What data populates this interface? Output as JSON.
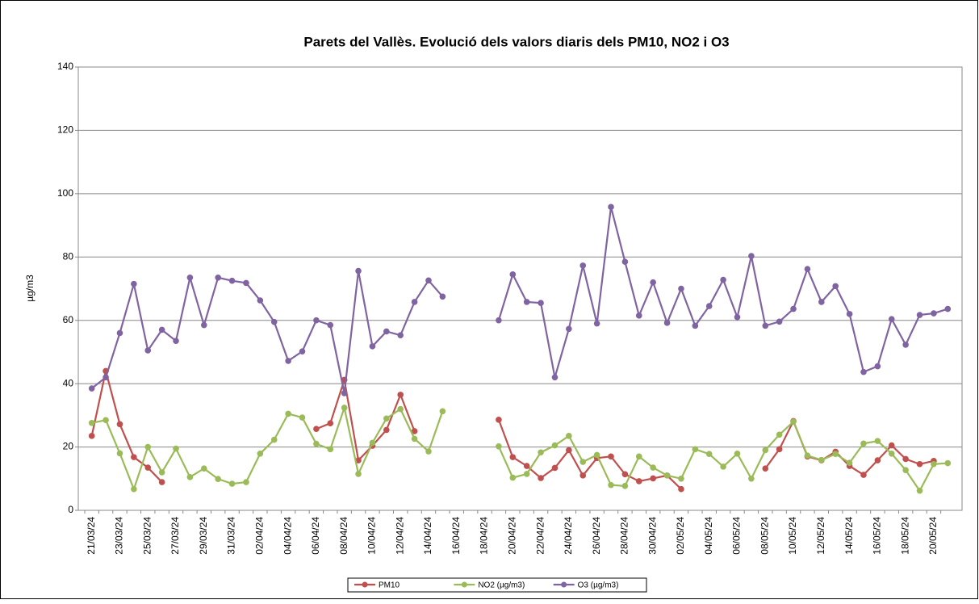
{
  "chart_data": {
    "type": "line",
    "title": "Parets del Vallès. Evolució dels valors diaris dels PM10, NO2 i O3",
    "y_label": "µg/m3",
    "categories": [
      "21/03/24",
      null,
      "23/03/24",
      null,
      "25/03/24",
      null,
      "27/03/24",
      null,
      "29/03/24",
      null,
      "31/03/24",
      null,
      "02/04/24",
      null,
      "04/04/24",
      null,
      "06/04/24",
      null,
      "08/04/24",
      null,
      "10/04/24",
      null,
      "12/04/24",
      null,
      "14/04/24",
      null,
      "16/04/24",
      null,
      "18/04/24",
      null,
      "20/04/24",
      null,
      "22/04/24",
      null,
      "24/04/24",
      null,
      "26/04/24",
      null,
      "28/04/24",
      null,
      "30/04/24",
      null,
      "02/05/24",
      null,
      "04/05/24",
      null,
      "06/05/24",
      null,
      "08/05/24",
      null,
      "10/05/24",
      null,
      "12/05/24",
      null,
      "14/05/24",
      null,
      "16/05/24",
      null,
      "18/05/24",
      null,
      "20/05/24",
      null
    ],
    "series": [
      {
        "name": "PM10",
        "color": "#c0504d",
        "values": [
          23.5,
          44,
          27.2,
          16.8,
          13.5,
          8.9,
          null,
          null,
          null,
          null,
          null,
          null,
          null,
          null,
          null,
          null,
          25.7,
          27.5,
          41.2,
          15.8,
          20.4,
          25.4,
          36.5,
          25,
          null,
          null,
          null,
          null,
          null,
          28.6,
          16.8,
          14,
          10.2,
          13.4,
          19,
          11,
          16.5,
          17,
          11.4,
          9.2,
          10.1,
          11,
          6.7,
          null,
          null,
          null,
          null,
          null,
          13.2,
          19.3,
          28.2,
          17,
          15.8,
          18.5,
          14,
          11.2,
          15.8,
          20.5,
          16.2,
          14.6,
          15.6,
          null
        ]
      },
      {
        "name": "NO2 (µg/m3)",
        "color": "#9bbb59",
        "values": [
          27.6,
          28.5,
          18,
          6.7,
          20,
          12,
          19.5,
          10.5,
          13.2,
          9.9,
          8.4,
          8.9,
          17.9,
          22.3,
          30.5,
          29.3,
          21,
          19.3,
          32.4,
          11.5,
          21.3,
          29,
          32,
          22.6,
          18.6,
          31.3,
          null,
          null,
          null,
          20.2,
          10.3,
          11.5,
          18.3,
          20.5,
          23.5,
          15.3,
          17.5,
          8,
          7.7,
          17,
          13.5,
          11,
          10,
          19.3,
          17.8,
          13.8,
          17.9,
          10,
          19,
          23.9,
          28,
          17.3,
          15.9,
          17.8,
          15,
          21.1,
          21.9,
          17.9,
          12.7,
          6.2,
          14.6,
          14.9
        ]
      },
      {
        "name": "O3 (µg/m3)",
        "color": "#8064a2",
        "values": [
          38.5,
          42,
          56,
          71.5,
          50.5,
          57,
          53.5,
          73.5,
          58.5,
          73.5,
          72.5,
          71.8,
          66.3,
          59.5,
          47.2,
          50.2,
          60,
          58.5,
          37,
          75.6,
          51.8,
          56.5,
          55.3,
          65.8,
          72.6,
          67.5,
          null,
          null,
          null,
          60,
          74.5,
          65.8,
          65.5,
          42,
          57.3,
          77.3,
          59,
          95.8,
          78.5,
          61.5,
          72,
          59.2,
          70,
          58.3,
          64.5,
          72.8,
          61,
          80.3,
          58.3,
          59.6,
          63.6,
          76.2,
          65.8,
          70.8,
          62,
          43.7,
          45.5,
          60.4,
          52.3,
          61.7,
          62.2,
          63.6
        ]
      }
    ],
    "ylim": [
      0,
      140
    ],
    "yticks": [
      0,
      20,
      40,
      60,
      80,
      100,
      120,
      140
    ],
    "grid": true,
    "legend": "bottom"
  }
}
